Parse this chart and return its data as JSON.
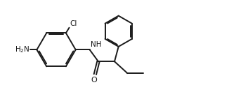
{
  "bg_color": "#ffffff",
  "line_color": "#1a1a1a",
  "line_width": 1.4,
  "figsize": [
    3.26,
    1.55
  ],
  "dpi": 100,
  "xlim": [
    0,
    10
  ],
  "ylim": [
    0,
    5
  ]
}
